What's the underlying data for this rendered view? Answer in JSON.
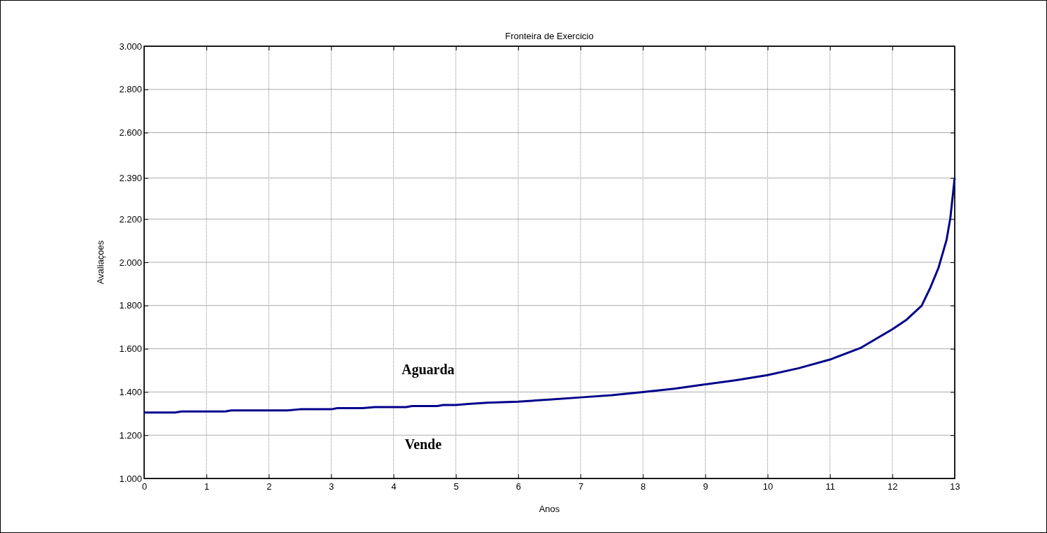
{
  "chart_data": {
    "type": "line",
    "title": "Fronteira de Exercicio",
    "xlabel": "Anos",
    "ylabel": "Avaliaçoes",
    "x": [
      0,
      0.5,
      0.6,
      1.3,
      1.4,
      2.3,
      2.5,
      3,
      3.1,
      3.5,
      3.7,
      4.2,
      4.3,
      4.7,
      4.8,
      5,
      5.2,
      5.5,
      6,
      6.5,
      7,
      7.5,
      8,
      8.5,
      9,
      9.5,
      10,
      10.5,
      11,
      11.5,
      12,
      12.23,
      12.47,
      12.61,
      12.74,
      12.87,
      12.93,
      13
    ],
    "series": [
      {
        "color": "#00008b",
        "values": [
          1305,
          1305,
          1310,
          1310,
          1315,
          1315,
          1320,
          1320,
          1325,
          1325,
          1330,
          1330,
          1335,
          1335,
          1340,
          1340,
          1345,
          1350,
          1355,
          1365,
          1375,
          1385,
          1400,
          1415,
          1435,
          1455,
          1478,
          1510,
          1550,
          1605,
          1690,
          1735,
          1799,
          1883,
          1974,
          2104,
          2204,
          2390
        ]
      }
    ],
    "xlim": [
      0,
      13
    ],
    "xticks": [
      0,
      1,
      2,
      3,
      4,
      5,
      6,
      7,
      8,
      9,
      10,
      11,
      12,
      13
    ],
    "ylim": [
      1000,
      3000
    ],
    "yticks": [
      {
        "value": 1000,
        "label": "1.000"
      },
      {
        "value": 1200,
        "label": "1.200"
      },
      {
        "value": 1400,
        "label": "1.400"
      },
      {
        "value": 1600,
        "label": "1.600"
      },
      {
        "value": 1800,
        "label": "1.800"
      },
      {
        "value": 2000,
        "label": "2.000"
      },
      {
        "value": 2200,
        "label": "2.200"
      },
      {
        "value": 2390,
        "label": "2.390"
      },
      {
        "value": 2600,
        "label": "2.600"
      },
      {
        "value": 2800,
        "label": "2.800"
      },
      {
        "value": 3000,
        "label": "3.000"
      }
    ],
    "annotations": [
      "Aguarda",
      "Vende"
    ],
    "grid": true,
    "marker": "none",
    "line_style": "solid",
    "legend": false
  }
}
